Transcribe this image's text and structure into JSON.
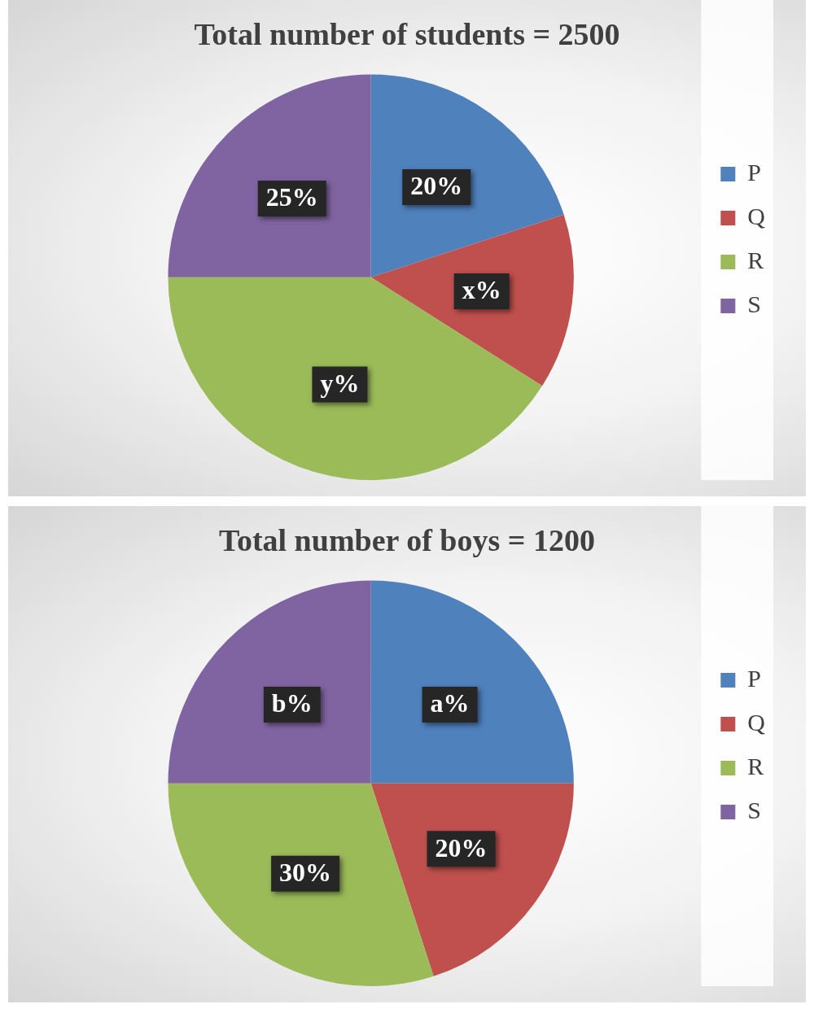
{
  "chart_data": [
    {
      "type": "pie",
      "title": "Total number of students = 2500",
      "categories": [
        "P",
        "Q",
        "R",
        "S"
      ],
      "values": [
        20,
        14,
        41,
        25
      ],
      "colors": [
        "#4f81bd",
        "#c0504d",
        "#9bbb59",
        "#8064a2"
      ],
      "value_labels": [
        "20%",
        "x%",
        "y%",
        "25%"
      ],
      "legend": "right"
    },
    {
      "type": "pie",
      "title": "Total number of boys = 1200",
      "categories": [
        "P",
        "Q",
        "R",
        "S"
      ],
      "values": [
        25,
        20,
        30,
        25
      ],
      "colors": [
        "#4f81bd",
        "#c0504d",
        "#9bbb59",
        "#8064a2"
      ],
      "value_labels": [
        "a%",
        "20%",
        "30%",
        "b%"
      ],
      "legend": "right"
    }
  ]
}
